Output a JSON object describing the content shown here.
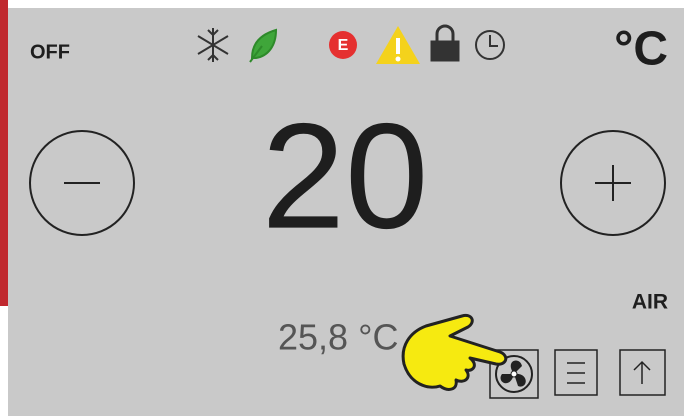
{
  "status": "OFF",
  "unit": "°C",
  "setpoint": "20",
  "error_code": "E",
  "mode": "AIR",
  "current_temperature": "25,8 °C"
}
